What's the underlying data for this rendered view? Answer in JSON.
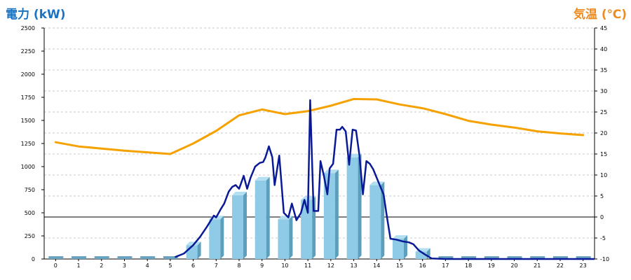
{
  "chart_data": {
    "type": "bar+line",
    "y_left_label": "電力 (kW)",
    "y_right_label": "気温 (℃)",
    "ylim_left": [
      0,
      2500
    ],
    "ylim_right": [
      -10,
      45
    ],
    "left_ticks": [
      0,
      250,
      500,
      750,
      1000,
      1250,
      1500,
      1750,
      2000,
      2250,
      2500
    ],
    "right_ticks": [
      -10,
      -5,
      0,
      5,
      10,
      15,
      20,
      25,
      30,
      35,
      40,
      45
    ],
    "categories": [
      "0",
      "1",
      "2",
      "3",
      "4",
      "5",
      "6",
      "7",
      "8",
      "9",
      "10",
      "11",
      "12",
      "13",
      "14",
      "15",
      "16",
      "17",
      "18",
      "19",
      "20",
      "21",
      "22",
      "23"
    ],
    "grid": "horizontal dashed",
    "colors": {
      "bar_front": "#8fcbe6",
      "bar_side": "#5b9fbd",
      "bar_top": "#b4dff0",
      "zero_bar": "#6aa3c0",
      "power_line": "#0a1a96",
      "temp_line": "#f5a100",
      "left_title": "#1a74c4",
      "right_title": "#ee8a1e",
      "grid": "#c9c9c9"
    },
    "series": [
      {
        "type": "bar",
        "axis": "left",
        "values": [
          0,
          0,
          0,
          0,
          0,
          0,
          150,
          430,
          690,
          850,
          430,
          640,
          930,
          1100,
          800,
          220,
          80,
          0,
          0,
          0,
          0,
          0,
          0,
          0
        ]
      },
      {
        "type": "line",
        "axis": "right",
        "x": [
          0,
          1,
          2,
          3,
          4,
          5,
          6,
          7,
          8,
          9,
          10,
          11,
          12,
          13,
          14,
          15,
          16,
          17,
          18,
          19,
          20,
          21,
          22,
          23
        ],
        "values": [
          17.8,
          16.8,
          16.3,
          15.8,
          15.4,
          15.0,
          17.5,
          20.5,
          24.2,
          25.6,
          24.5,
          25.2,
          26.5,
          28.1,
          28.0,
          26.8,
          25.9,
          24.5,
          22.9,
          22.0,
          21.3,
          20.4,
          19.9,
          19.5
        ]
      },
      {
        "type": "line",
        "axis": "left",
        "x": [
          5.2,
          5.6,
          6.0,
          6.3,
          6.6,
          6.9,
          7.0,
          7.2,
          7.35,
          7.55,
          7.7,
          7.85,
          8.0,
          8.2,
          8.35,
          8.5,
          8.7,
          8.9,
          9.05,
          9.15,
          9.3,
          9.45,
          9.55,
          9.75,
          9.95,
          10.15,
          10.3,
          10.5,
          10.7,
          10.85,
          11.0,
          11.1,
          11.25,
          11.45,
          11.55,
          11.7,
          11.85,
          11.95,
          12.1,
          12.25,
          12.4,
          12.5,
          12.65,
          12.8,
          12.95,
          13.1,
          13.25,
          13.4,
          13.55,
          13.7,
          13.85,
          14.1,
          14.3,
          14.45,
          14.6,
          14.85,
          15.15,
          15.4,
          15.6,
          15.85,
          16.1,
          16.4,
          17.0,
          23.5
        ],
        "values": [
          20,
          60,
          150,
          240,
          350,
          470,
          450,
          540,
          600,
          730,
          780,
          800,
          760,
          900,
          760,
          880,
          1000,
          1040,
          1050,
          1100,
          1220,
          1100,
          800,
          1120,
          500,
          450,
          600,
          420,
          500,
          640,
          500,
          1720,
          520,
          520,
          1060,
          900,
          700,
          980,
          1030,
          1400,
          1400,
          1430,
          1380,
          1020,
          1400,
          1390,
          1120,
          700,
          1060,
          1030,
          970,
          820,
          700,
          450,
          220,
          210,
          190,
          180,
          160,
          90,
          50,
          5,
          0,
          0
        ]
      }
    ]
  }
}
